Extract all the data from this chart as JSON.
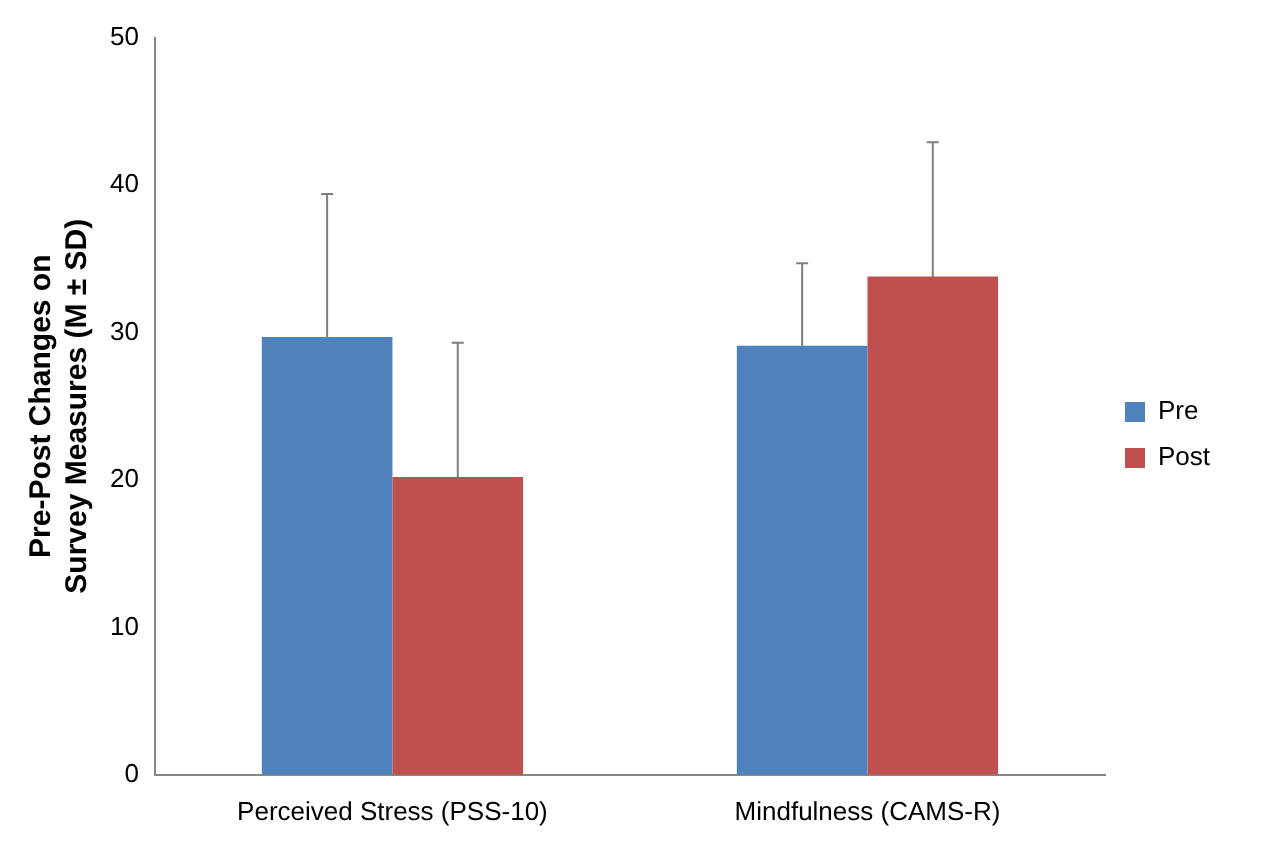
{
  "chart_data": {
    "type": "bar",
    "ylabel": "Pre-Post Changes on Survey Measures (M ± SD)",
    "categories": [
      "Perceived Stress (PSS-10)",
      "Mindfulness (CAMS-R)"
    ],
    "series": [
      {
        "name": "Pre",
        "color": "#4f81bd",
        "values": [
          29.7,
          29.1
        ],
        "errors": [
          9.7,
          5.6
        ]
      },
      {
        "name": "Post",
        "color": "#c0504d",
        "values": [
          20.2,
          33.8
        ],
        "errors": [
          9.1,
          9.1
        ]
      }
    ],
    "ylim": [
      0,
      50
    ],
    "yticks": [
      0,
      10,
      20,
      30,
      40,
      50
    ],
    "grid": false,
    "legend": "right"
  }
}
